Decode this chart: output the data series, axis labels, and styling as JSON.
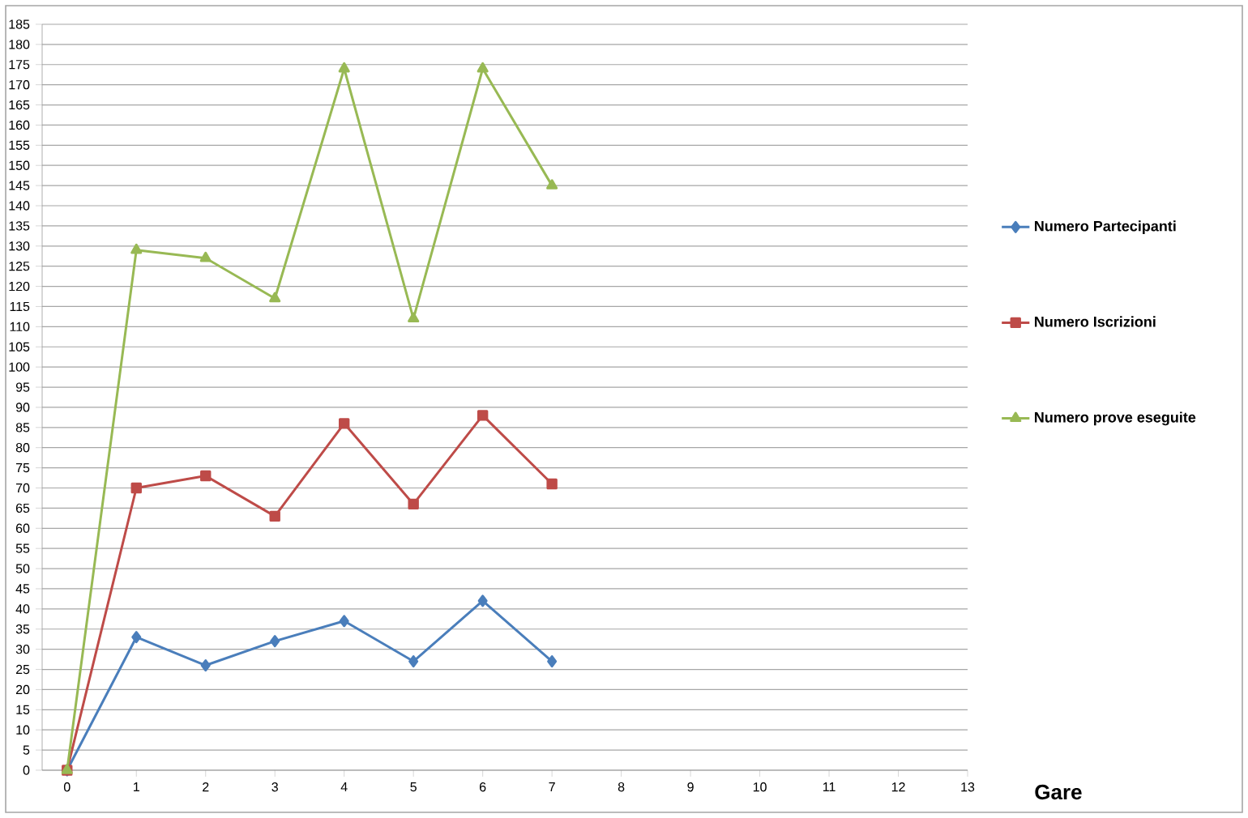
{
  "chart_data": {
    "type": "line",
    "xlabel": "Gare",
    "x": [
      0,
      1,
      2,
      3,
      4,
      5,
      6,
      7
    ],
    "series": [
      {
        "name": "Numero Partecipanti",
        "color": "#4a7ebb",
        "marker": "diamond",
        "values": [
          0,
          33,
          26,
          32,
          37,
          27,
          42,
          27
        ]
      },
      {
        "name": "Numero Iscrizioni",
        "color": "#be4b48",
        "marker": "square",
        "values": [
          0,
          70,
          73,
          63,
          86,
          66,
          88,
          71
        ]
      },
      {
        "name": "Numero prove eseguite",
        "color": "#98b954",
        "marker": "triangle",
        "values": [
          0,
          129,
          127,
          117,
          174,
          112,
          174,
          145
        ]
      }
    ],
    "xlim": [
      -0.36,
      13
    ],
    "ylim": [
      0,
      185
    ],
    "xticks": [
      0,
      1,
      2,
      3,
      4,
      5,
      6,
      7,
      8,
      9,
      10,
      11,
      12,
      13
    ],
    "yticks": [
      0,
      5,
      10,
      15,
      20,
      25,
      30,
      35,
      40,
      45,
      50,
      55,
      60,
      65,
      70,
      75,
      80,
      85,
      90,
      95,
      100,
      105,
      110,
      115,
      120,
      125,
      130,
      135,
      140,
      145,
      150,
      155,
      160,
      165,
      170,
      175,
      180,
      185
    ],
    "grid": "y",
    "legend": "right",
    "line_style": "solid"
  }
}
